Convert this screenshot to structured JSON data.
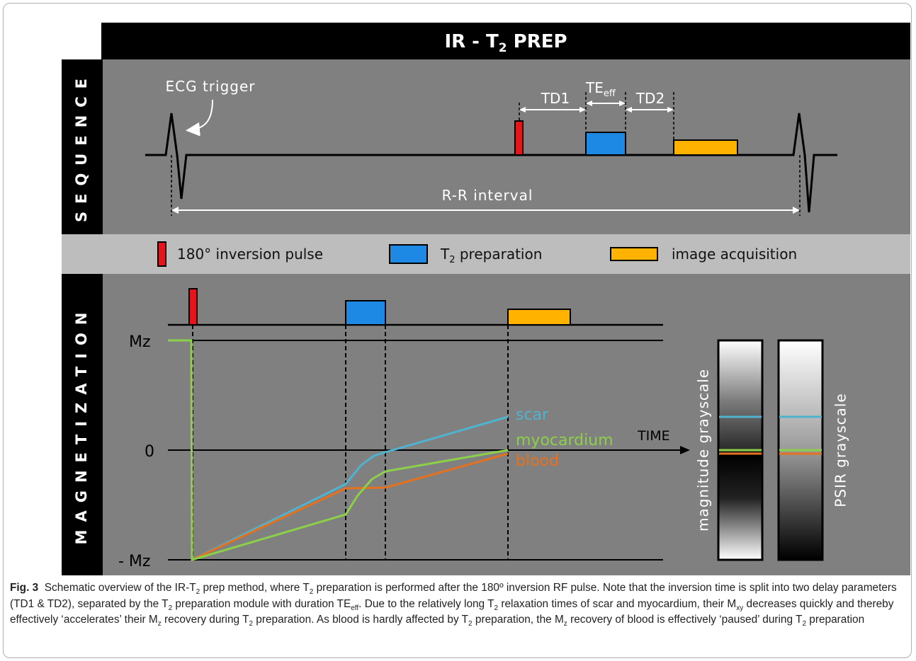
{
  "title": {
    "prefix": "IR - T",
    "sub": "2",
    "suffix": " PREP"
  },
  "side_labels": {
    "sequence": "SEQUENCE",
    "magnetization": "MAGNETIZATION"
  },
  "sequence": {
    "ecg_trigger": "ECG trigger",
    "td1": "TD1",
    "te": "TE",
    "te_sub": "eff",
    "td2": "TD2",
    "rr_interval": "R-R interval"
  },
  "legend": {
    "inversion": "180° inversion pulse",
    "t2_prefix": "T",
    "t2_sub": "2",
    "t2_suffix": " preparation",
    "acquisition": "image acquisition"
  },
  "magnetization": {
    "mz_top": "Mz",
    "zero": "0",
    "mz_bottom": "- Mz",
    "time_axis": "TIME",
    "scar": "scar",
    "myocardium": "myocardium",
    "blood": "blood",
    "magnitude": "magnitude grayscale",
    "psir": "PSIR grayscale"
  },
  "colors": {
    "inversion": "#e3171b",
    "t2prep": "#1e88e5",
    "acquisition": "#ffb300",
    "scar": "#4fb3cf",
    "myocardium": "#8cd04a",
    "blood": "#e5711e",
    "panel_dark": "#808080",
    "panel_light": "#bdbdbd"
  },
  "caption": {
    "label": "Fig. 3",
    "t1": "Schematic overview of the IR-T",
    "s1": "2",
    "t2": " prep method, where T",
    "s2": "2",
    "t3": " preparation is performed after the 180º inversion RF pulse. Note that the inversion time is split into two delay parameters (TD1 & TD2), separated by the T",
    "s3": "2",
    "t4": " preparation module with duration TE",
    "s4": "eff",
    "t5": ". Due to the relatively long T",
    "s5": "2",
    "t6": " relaxation times of scar and myocardium, their M",
    "s6": "xy",
    "t7": " decreases quickly and thereby effectively ‘accelerates’ their M",
    "s7": "z",
    "t8": " recovery during T",
    "s8": "2",
    "t9": " preparation. As blood is hardly affected by T",
    "s9": "2",
    "t10": " preparation, the M",
    "s10": "z",
    "t11": " recovery of blood is effectively ‘paused’ during T",
    "s11": "2",
    "t12": " preparation"
  }
}
